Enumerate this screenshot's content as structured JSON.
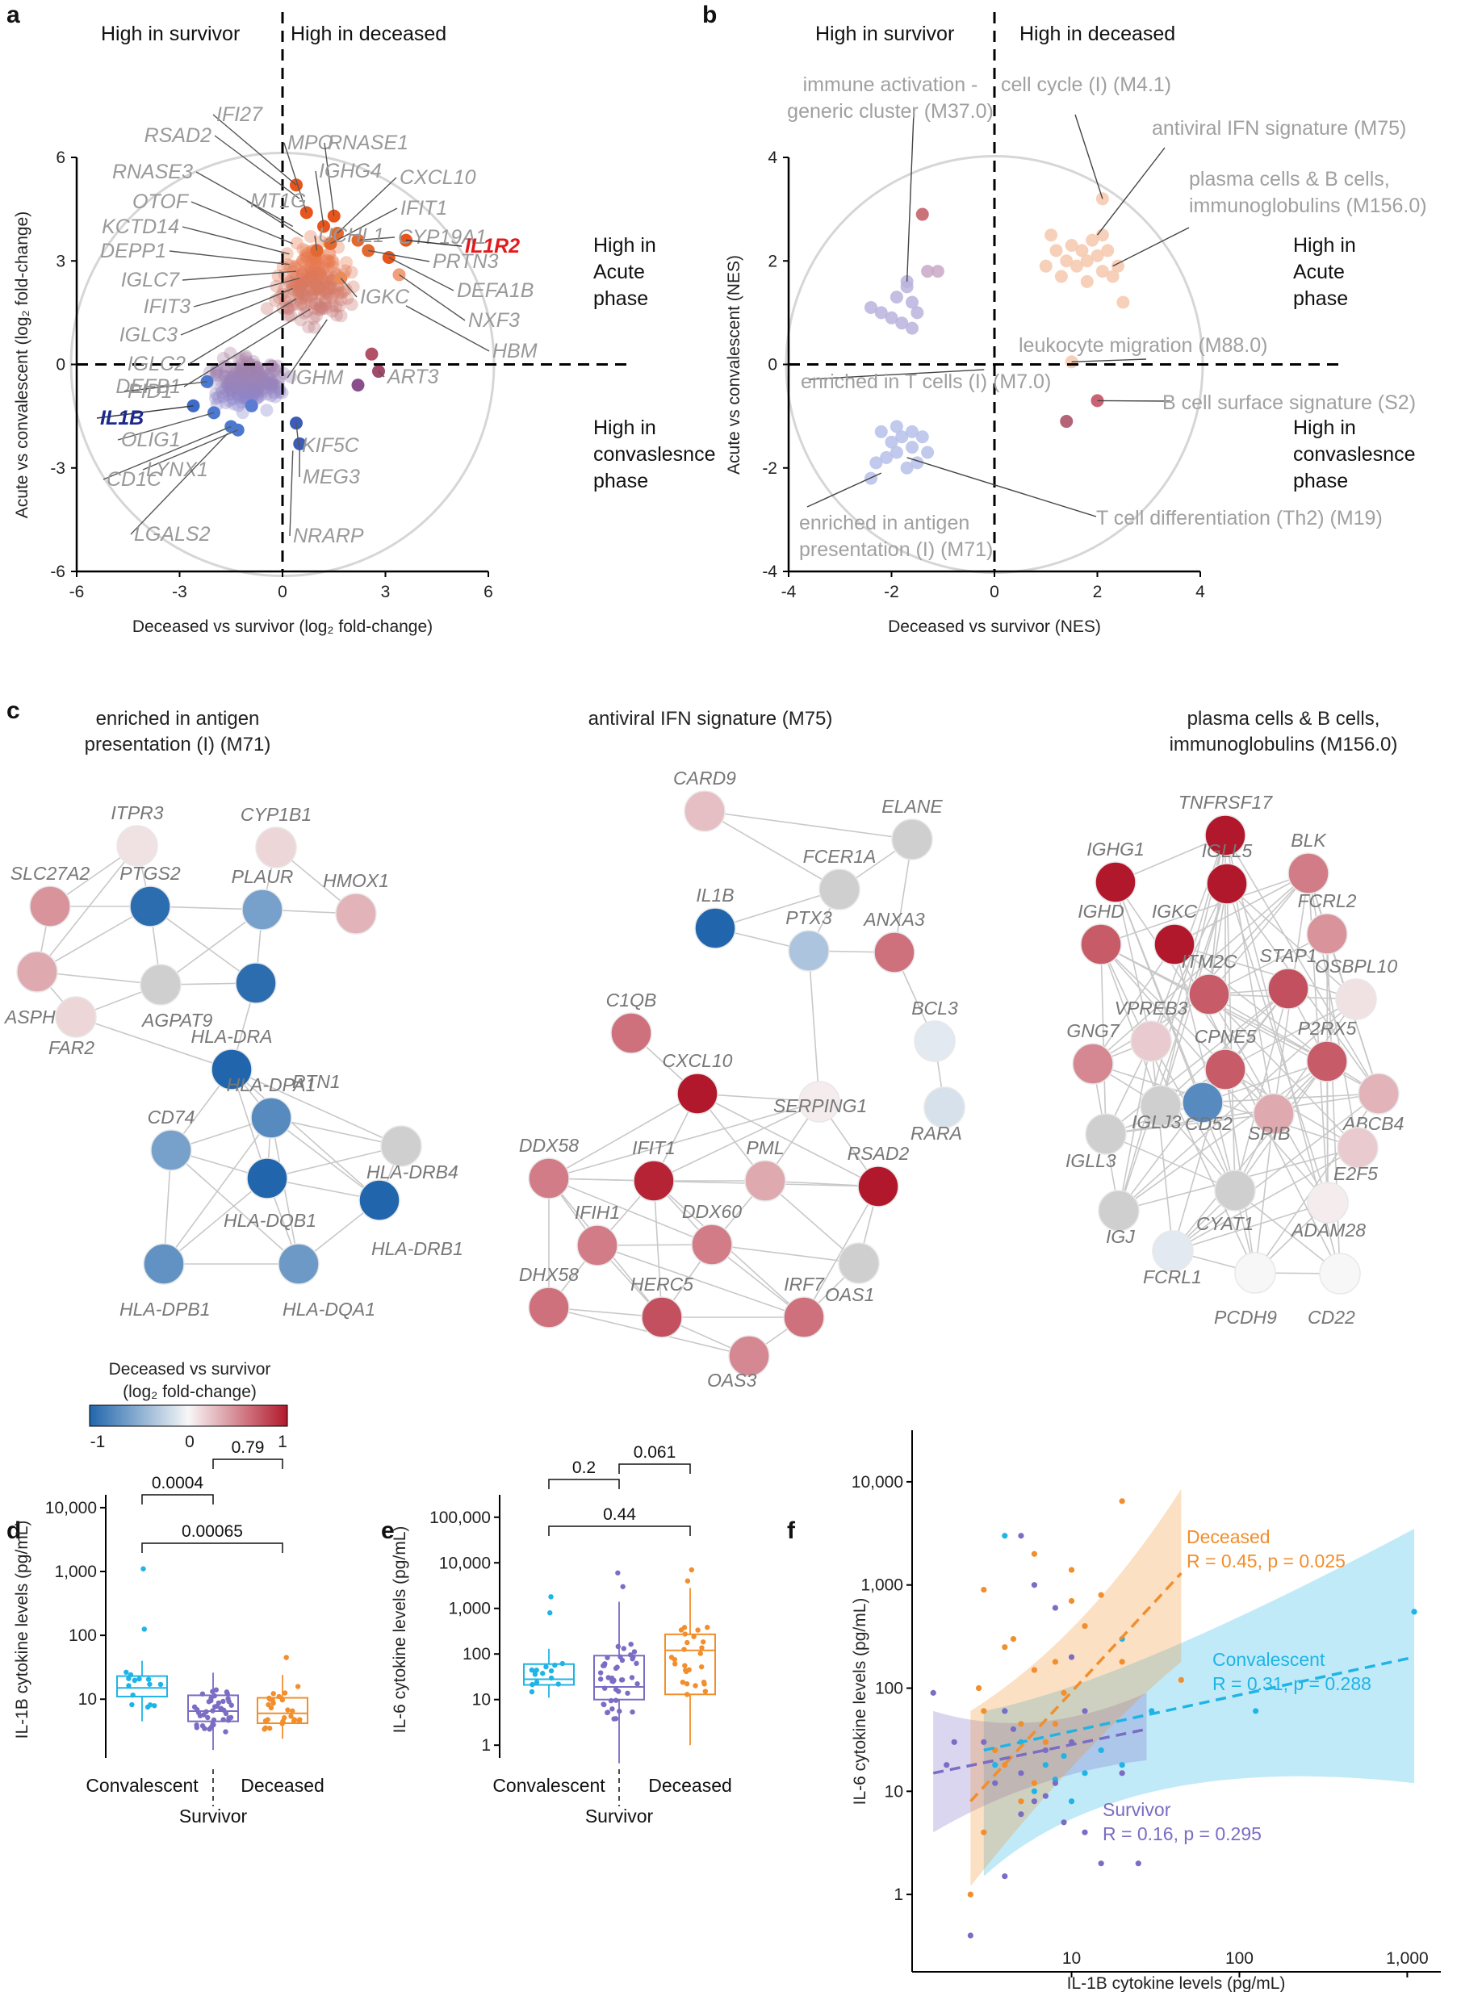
{
  "panels": {
    "a": "a",
    "b": "b",
    "c": "c",
    "d": "d",
    "e": "e",
    "f": "f"
  },
  "quadrants": {
    "high_survivor": "High in survivor",
    "high_deceased": "High in deceased",
    "high_acute": [
      "High in",
      "Acute",
      "phase"
    ],
    "high_conv": [
      "High in",
      "convaslesnce",
      "phase"
    ]
  },
  "chart_data": [
    {
      "panel": "a",
      "type": "scatter",
      "xlabel": "Deceased vs survivor (log₂ fold-change)",
      "ylabel": "Acute vs convalescent (log₂ fold-change)",
      "xlim": [
        -6,
        6
      ],
      "ylim": [
        -6,
        6
      ],
      "xticks": [
        "-6",
        "-3",
        "0",
        "3",
        "6"
      ],
      "yticks": [
        "6",
        "3",
        "0",
        "-3",
        "-6"
      ],
      "labeled_genes": [
        {
          "name": "IFI27",
          "x": 0.4,
          "y": 5.2
        },
        {
          "name": "RSAD2",
          "x": 0.5,
          "y": 4.8
        },
        {
          "name": "MPO",
          "x": 0.7,
          "y": 4.4
        },
        {
          "name": "RNASE1",
          "x": 1.5,
          "y": 4.3
        },
        {
          "name": "IGHG4",
          "x": 1.2,
          "y": 4.0
        },
        {
          "name": "CXCL10",
          "x": 1.6,
          "y": 3.8
        },
        {
          "name": "RNASE3",
          "x": 0.3,
          "y": 4.0
        },
        {
          "name": "MT1G",
          "x": 0.6,
          "y": 3.7
        },
        {
          "name": "IFIT1",
          "x": 1.4,
          "y": 3.5
        },
        {
          "name": "OTOF",
          "x": 0.3,
          "y": 3.5
        },
        {
          "name": "CYP19A1",
          "x": 2.2,
          "y": 3.6
        },
        {
          "name": "UCHL1",
          "x": 1.0,
          "y": 3.3
        },
        {
          "name": "KCTD14",
          "x": 0.2,
          "y": 3.2
        },
        {
          "name": "PRTN3",
          "x": 2.5,
          "y": 3.3
        },
        {
          "name": "IL1R2",
          "x": 3.6,
          "y": 3.6
        },
        {
          "name": "DEPP1",
          "x": 0.2,
          "y": 2.9
        },
        {
          "name": "IGLC7",
          "x": 0.4,
          "y": 2.7
        },
        {
          "name": "DEFA1B",
          "x": 3.1,
          "y": 3.1
        },
        {
          "name": "IFIT3",
          "x": 0.5,
          "y": 2.5
        },
        {
          "name": "IGKC",
          "x": 1.7,
          "y": 2.5
        },
        {
          "name": "NXF3",
          "x": 3.4,
          "y": 2.6
        },
        {
          "name": "IGLC3",
          "x": 0.3,
          "y": 2.2
        },
        {
          "name": "IGLC2",
          "x": 0.4,
          "y": 1.9
        },
        {
          "name": "HBM",
          "x": 3.6,
          "y": 1.7
        },
        {
          "name": "DEFB1",
          "x": 0.8,
          "y": 1.6
        },
        {
          "name": "IGHM",
          "x": 1.3,
          "y": 1.3
        },
        {
          "name": "ART3",
          "x": 2.8,
          "y": -0.2
        },
        {
          "name": "PID1",
          "x": -2.2,
          "y": -0.5
        },
        {
          "name": "IL1B",
          "x": -2.6,
          "y": -1.2
        },
        {
          "name": "OLIG1",
          "x": -2.0,
          "y": -1.4
        },
        {
          "name": "KIF5C",
          "x": 0.4,
          "y": -1.7
        },
        {
          "name": "MEG3",
          "x": 0.5,
          "y": -2.3
        },
        {
          "name": "CD1C",
          "x": -1.5,
          "y": -1.8
        },
        {
          "name": "LYNX1",
          "x": -1.3,
          "y": -1.9
        },
        {
          "name": "LGALS2",
          "x": -1.6,
          "y": -2.0
        },
        {
          "name": "NRARP",
          "x": 0.3,
          "y": -2.5
        }
      ]
    },
    {
      "panel": "b",
      "type": "scatter",
      "xlabel": "Deceased vs survivor (NES)",
      "ylabel": "Acute vs convalescent (NES)",
      "xlim": [
        -4,
        4
      ],
      "ylim": [
        -4,
        4
      ],
      "xticks": [
        "-4",
        "-2",
        "0",
        "2",
        "4"
      ],
      "yticks": [
        "4",
        "2",
        "0",
        "-2",
        "-4"
      ],
      "modules": [
        {
          "name": "immune activation -\ngeneric cluster (M37.0)",
          "x": -1.7,
          "y": 1.6
        },
        {
          "name": "cell cycle (I) (M4.1)",
          "x": 2.1,
          "y": 3.2
        },
        {
          "name": "antiviral IFN signature (M75)",
          "x": 2.0,
          "y": 2.5
        },
        {
          "name": "plasma cells & B cells,\nimmunoglobulins (M156.0)",
          "x": 2.3,
          "y": 1.9
        },
        {
          "name": "leukocyte migration (M88.0)",
          "x": 1.5,
          "y": 0.05
        },
        {
          "name": "enriched in T cells (I) (M7.0)",
          "x": -0.2,
          "y": -0.1
        },
        {
          "name": "B cell surface signature (S2)",
          "x": 2.0,
          "y": -0.7
        },
        {
          "name": "T cell differentiation (Th2) (M19)",
          "x": -1.7,
          "y": -1.8
        },
        {
          "name": "enriched in antigen\npresentation (I) (M71)",
          "x": -2.2,
          "y": -2.1
        }
      ]
    },
    {
      "panel": "c",
      "type": "network",
      "networks": [
        {
          "title": [
            "enriched in antigen",
            "presentation (I) (M71)"
          ],
          "nodes": [
            "ITPR3",
            "CYP1B1",
            "SLC27A2",
            "PTGS2",
            "PLAUR",
            "HMOX1",
            "ASPH",
            "AGPAT9",
            "RTN1",
            "FAR2",
            "HLA-DRA",
            "HLA-DPA1",
            "CD74",
            "HLA-DRB4",
            "HLA-DQB1",
            "HLA-DRB1",
            "HLA-DPB1",
            "HLA-DQA1"
          ],
          "values": [
            0.1,
            0.15,
            0.45,
            -0.95,
            -0.6,
            0.3,
            0.35,
            null,
            -0.95,
            0.15,
            -1.0,
            -0.75,
            -0.6,
            null,
            -1.0,
            -1.0,
            -0.7,
            -0.65
          ]
        },
        {
          "title": [
            "antiviral IFN signature (M75)"
          ],
          "nodes": [
            "CARD9",
            "ELANE",
            "FCER1A",
            "IL1B",
            "PTX3",
            "ANXA3",
            "C1QB",
            "BCL3",
            "RARA",
            "SERPING1",
            "CXCL10",
            "DDX58",
            "IFIT1",
            "PML",
            "RSAD2",
            "IFIH1",
            "DDX60",
            "OAS1",
            "DHX58",
            "HERC5",
            "IRF7",
            "OAS3"
          ],
          "values": [
            0.25,
            null,
            null,
            -1.0,
            -0.35,
            0.6,
            0.6,
            -0.1,
            -0.15,
            0.05,
            1.0,
            0.55,
            0.95,
            0.35,
            1.0,
            0.55,
            0.55,
            null,
            0.6,
            0.75,
            0.6,
            0.5
          ]
        },
        {
          "title": [
            "plasma cells & B cells,",
            "immunoglobulins (M156.0)"
          ],
          "nodes": [
            "TNFRSF17",
            "IGHG1",
            "IGLL5",
            "BLK",
            "IGHD",
            "IGKC",
            "FCRL2",
            "ITM2C",
            "STAP1",
            "OSBPL10",
            "VPREB3",
            "GNG7",
            "CPNE5",
            "P2RX5",
            "IGLJ3",
            "CD52",
            "SPIB",
            "ABCB4",
            "IGLL3",
            "E2F5",
            "IGJ",
            "CYAT1",
            "ADAM28",
            "FCRL1",
            "PCDH9",
            "CD22"
          ],
          "values": [
            1.0,
            1.0,
            1.0,
            0.55,
            0.7,
            1.0,
            0.45,
            0.7,
            0.75,
            0.1,
            0.2,
            0.5,
            0.7,
            0.7,
            null,
            -0.75,
            0.35,
            0.3,
            null,
            0.2,
            null,
            null,
            0.05,
            -0.1,
            0.0,
            0.0
          ]
        }
      ],
      "colorbar": {
        "title": [
          "Deceased vs survivor",
          "(log₂ fold-change)"
        ],
        "ticks": [
          "-1",
          "0",
          "1"
        ],
        "low": "#2166ac",
        "mid": "#f7f7f7",
        "high": "#b2182b"
      }
    },
    {
      "panel": "d",
      "type": "box",
      "ylabel": "IL-1B cytokine levels (pg/mL)",
      "yscale": "log",
      "yticks": [
        "10,000",
        "1,000",
        "100",
        "10"
      ],
      "categories": [
        "Convalescent",
        "Survivor",
        "Deceased"
      ],
      "group_label": "Survivor",
      "box_stats": [
        {
          "q1": 11,
          "med": 15,
          "q3": 23,
          "lo": 4.5,
          "hi": 40
        },
        {
          "q1": 4.5,
          "med": 6.5,
          "q3": 11.5,
          "lo": 1.6,
          "hi": 26
        },
        {
          "q1": 4.2,
          "med": 6.0,
          "q3": 10.5,
          "lo": 2.4,
          "hi": 24
        }
      ],
      "pvalues": [
        "0.0004",
        "0.79",
        "0.00065"
      ]
    },
    {
      "panel": "e",
      "type": "box",
      "ylabel": "IL-6 cytokine levels (pg/mL)",
      "yscale": "log",
      "yticks": [
        "100,000",
        "10,000",
        "1,000",
        "100",
        "10",
        "1"
      ],
      "categories": [
        "Convalescent",
        "Survivor",
        "Deceased"
      ],
      "group_label": "Survivor",
      "box_stats": [
        {
          "q1": 21,
          "med": 28,
          "q3": 60,
          "lo": 11,
          "hi": 130
        },
        {
          "q1": 10,
          "med": 19,
          "q3": 92,
          "lo": 0.4,
          "hi": 1400
        },
        {
          "q1": 13,
          "med": 120,
          "q3": 270,
          "lo": 1.0,
          "hi": 2800
        }
      ],
      "pvalues": [
        "0.2",
        "0.061",
        "0.44"
      ]
    },
    {
      "panel": "f",
      "type": "scatter",
      "xlabel": "IL-1B cytokine levels (pg/mL)",
      "ylabel": "IL-6 cytokine levels (pg/mL)",
      "xscale": "log",
      "yscale": "log",
      "xticks": [
        "10",
        "100",
        "1,000"
      ],
      "yticks": [
        "10,000",
        "1,000",
        "100",
        "10",
        "1"
      ],
      "series": [
        {
          "name": "Deceased",
          "stat": "R = 0.45, p = 0.025",
          "color": "#f28e2b",
          "fit": [
            [
              2.5,
              8
            ],
            [
              45,
              1300
            ]
          ]
        },
        {
          "name": "Convalescent",
          "stat": "R = 0.31, p = 0.288",
          "color": "#1fb4e6",
          "fit": [
            [
              3,
              25
            ],
            [
              1100,
              200
            ]
          ]
        },
        {
          "name": "Survivor",
          "stat": "R = 0.16, p = 0.295",
          "color": "#7b6cc4",
          "fit": [
            [
              1.5,
              15
            ],
            [
              28,
              40
            ]
          ]
        }
      ]
    }
  ]
}
